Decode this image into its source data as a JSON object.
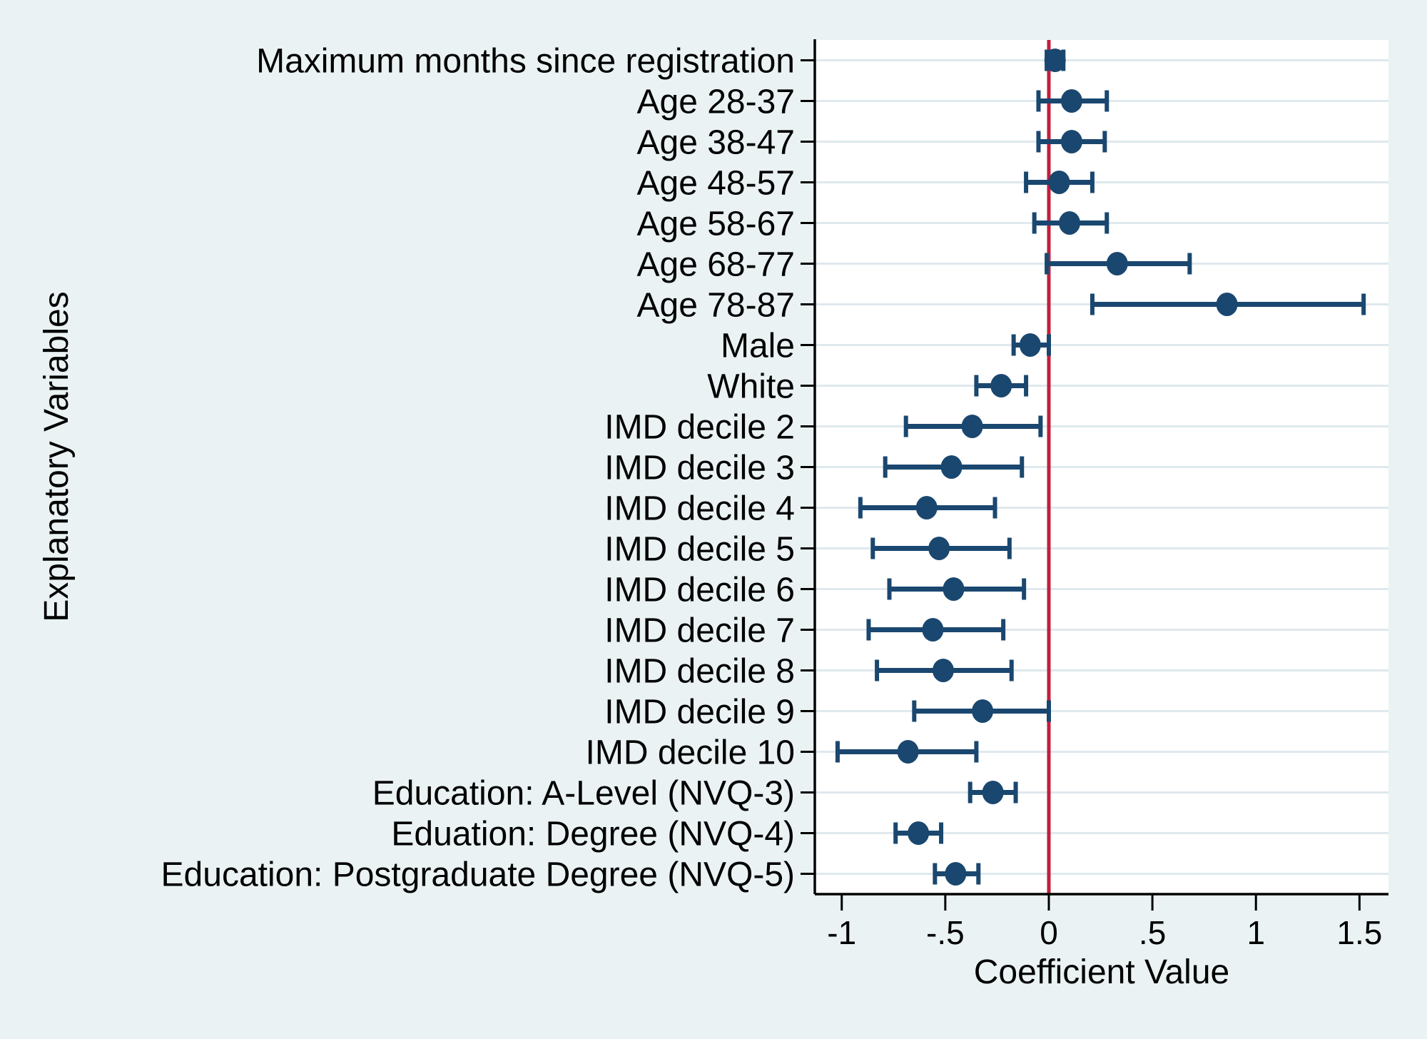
{
  "figure": {
    "background_color": "#eaf2f3",
    "plot_background_color": "#ffffff",
    "grid_color": "#dfe9ee",
    "axis_color": "#000000",
    "marker_color": "#1a476f",
    "refline_color": "#c21e3c",
    "text_color": "#000000"
  },
  "chart_data": {
    "type": "scatter",
    "subtype": "coefficient-plot-with-95ci",
    "orientation": "horizontal",
    "title": "",
    "xlabel": "Coefficient Value",
    "ylabel": "Explanatory Variables",
    "xlim": [
      -1.13,
      1.64
    ],
    "x_ticks": [
      -1,
      -0.5,
      0,
      0.5,
      1,
      1.5
    ],
    "x_tick_labels": [
      "-1",
      "-.5",
      "0",
      ".5",
      "1",
      "1.5"
    ],
    "refline_x": 0,
    "grid": "horizontal",
    "legend": "none",
    "categories": [
      "Maximum months since registration",
      "Age 28-37",
      "Age 38-47",
      "Age 48-57",
      "Age 58-67",
      "Age 68-77",
      "Age 78-87",
      "Male",
      "White",
      "IMD decile 2",
      "IMD decile 3",
      "IMD decile 4",
      "IMD decile 5",
      "IMD decile 6",
      "IMD decile 7",
      "IMD decile 8",
      "IMD decile 9",
      "IMD decile 10",
      "Education: A-Level (NVQ-3)",
      "Eduation: Degree (NVQ-4)",
      "Education: Postgraduate Degree (NVQ-5)"
    ],
    "series": [
      {
        "name": "coefficient",
        "values": [
          0.03,
          0.11,
          0.11,
          0.05,
          0.1,
          0.33,
          0.86,
          -0.09,
          -0.23,
          -0.37,
          -0.47,
          -0.59,
          -0.53,
          -0.46,
          -0.56,
          -0.51,
          -0.32,
          -0.68,
          -0.27,
          -0.63,
          -0.45
        ],
        "ci_low": [
          -0.01,
          -0.05,
          -0.05,
          -0.11,
          -0.07,
          -0.01,
          0.21,
          -0.17,
          -0.35,
          -0.69,
          -0.79,
          -0.91,
          -0.85,
          -0.77,
          -0.87,
          -0.83,
          -0.65,
          -1.02,
          -0.38,
          -0.74,
          -0.55
        ],
        "ci_high": [
          0.07,
          0.28,
          0.27,
          0.21,
          0.28,
          0.68,
          1.52,
          0.0,
          -0.11,
          -0.04,
          -0.13,
          -0.26,
          -0.19,
          -0.12,
          -0.22,
          -0.18,
          0.0,
          -0.35,
          -0.16,
          -0.52,
          -0.34
        ]
      }
    ]
  }
}
